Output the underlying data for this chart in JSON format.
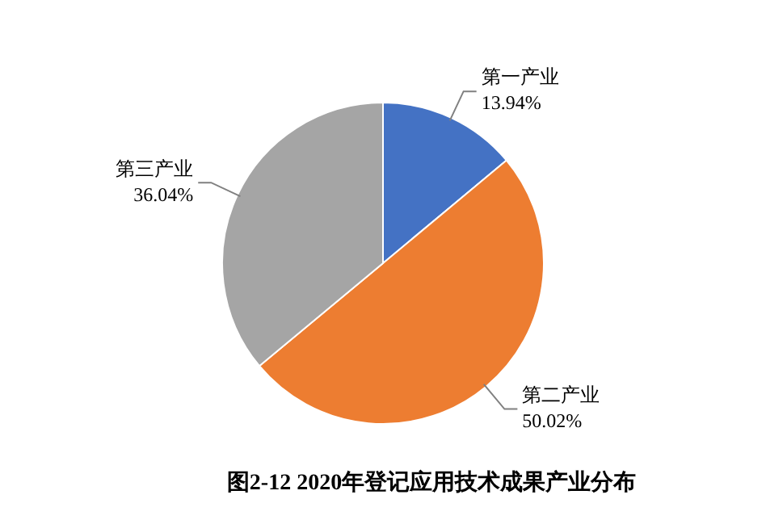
{
  "chart_data": {
    "type": "pie",
    "title": "图2-12  2020年登记应用技术成果产业分布",
    "categories": [
      "第一产业",
      "第二产业",
      "第三产业"
    ],
    "values": [
      13.94,
      50.02,
      36.04
    ],
    "value_labels": [
      "13.94%",
      "50.02%",
      "36.04%"
    ],
    "colors": [
      "#4472c4",
      "#ed7d31",
      "#a5a5a5"
    ],
    "legend": false
  }
}
